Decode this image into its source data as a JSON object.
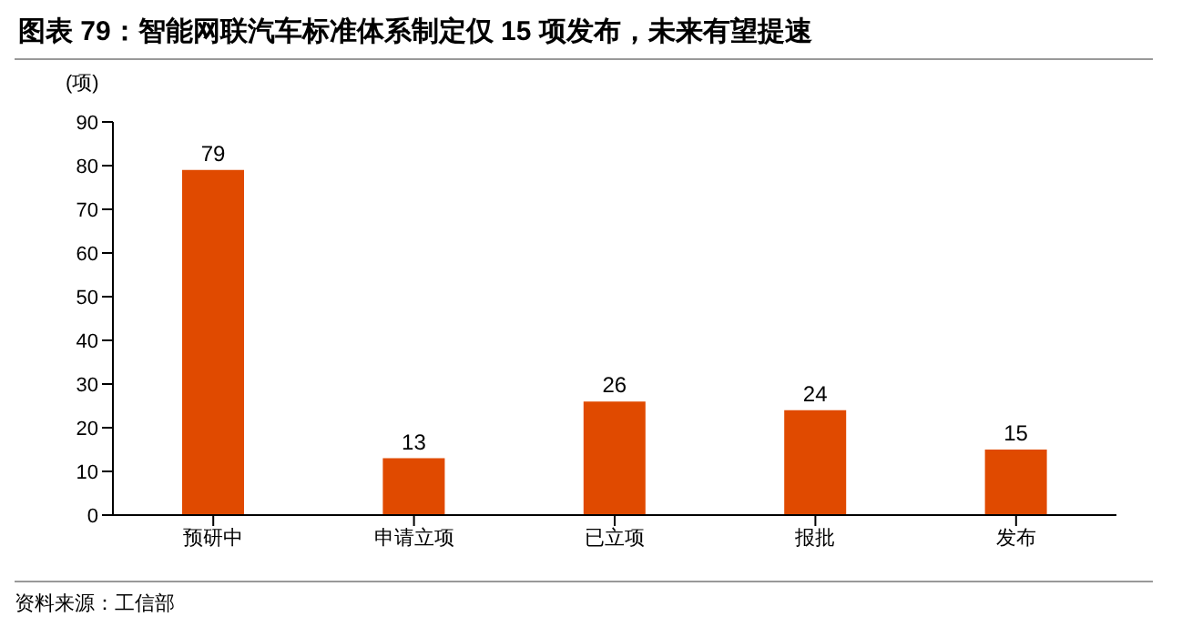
{
  "chart_data": {
    "type": "bar",
    "title": "图表 79：智能网联汽车标准体系制定仅 15 项发布，未来有望提速",
    "ylabel": "(项)",
    "categories": [
      "预研中",
      "申请立项",
      "已立项",
      "报批",
      "发布"
    ],
    "values": [
      79,
      13,
      26,
      24,
      15
    ],
    "color": "#e04a00",
    "ylim": [
      0,
      90
    ],
    "yticks": [
      0,
      10,
      20,
      30,
      40,
      50,
      60,
      70,
      80,
      90
    ],
    "data_labels": true,
    "annotations": [
      "资料来源：工信部"
    ]
  }
}
